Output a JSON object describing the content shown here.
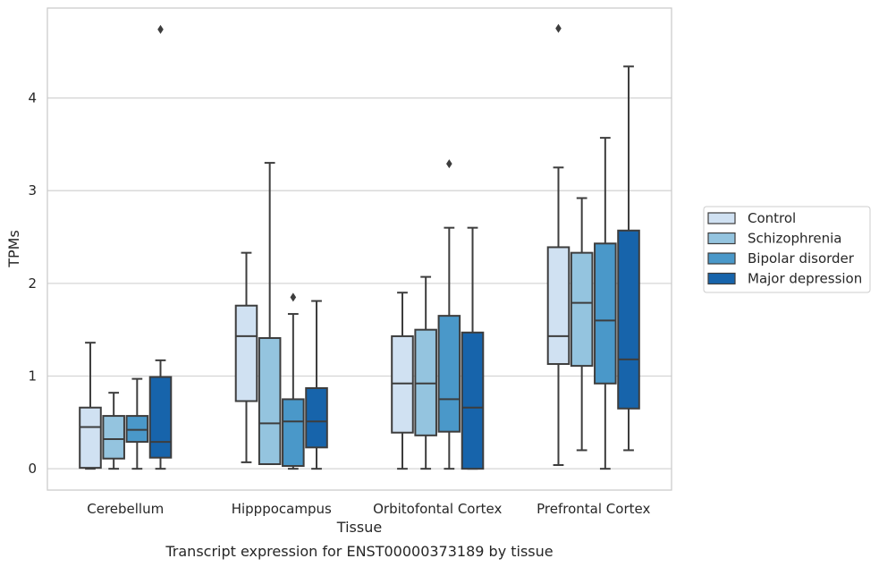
{
  "chart_data": {
    "type": "box",
    "caption": "Transcript expression for ENST00000373189 by tissue",
    "xlabel": "Tissue",
    "ylabel": "TPMs",
    "ylim": [
      -0.23,
      4.97
    ],
    "yticks": [
      0,
      1,
      2,
      3,
      4
    ],
    "grid": "horizontal",
    "legend_position": "right",
    "categories": [
      "Cerebellum",
      "Hipppocampus",
      "Orbitofontal Cortex",
      "Prefrontal Cortex"
    ],
    "series": [
      {
        "name": "Control",
        "color": "#d0e1f2",
        "boxes": [
          {
            "min": 0.0,
            "q1": 0.01,
            "median": 0.45,
            "q3": 0.66,
            "max": 1.36,
            "outliers": []
          },
          {
            "min": 0.07,
            "q1": 0.73,
            "median": 1.43,
            "q3": 1.76,
            "max": 2.33,
            "outliers": []
          },
          {
            "min": 0.0,
            "q1": 0.39,
            "median": 0.92,
            "q3": 1.43,
            "max": 1.9,
            "outliers": []
          },
          {
            "min": 0.04,
            "q1": 1.13,
            "median": 1.43,
            "q3": 2.39,
            "max": 3.25,
            "outliers": [
              4.75
            ]
          }
        ]
      },
      {
        "name": "Schizophrenia",
        "color": "#94c4df",
        "boxes": [
          {
            "min": 0.0,
            "q1": 0.11,
            "median": 0.32,
            "q3": 0.57,
            "max": 0.82,
            "outliers": []
          },
          {
            "min": 0.05,
            "q1": 0.05,
            "median": 0.49,
            "q3": 1.41,
            "max": 3.3,
            "outliers": []
          },
          {
            "min": 0.0,
            "q1": 0.36,
            "median": 0.92,
            "q3": 1.5,
            "max": 2.07,
            "outliers": []
          },
          {
            "min": 0.2,
            "q1": 1.11,
            "median": 1.79,
            "q3": 2.33,
            "max": 2.92,
            "outliers": []
          }
        ]
      },
      {
        "name": "Bipolar disorder",
        "color": "#4a98c9",
        "boxes": [
          {
            "min": 0.0,
            "q1": 0.29,
            "median": 0.42,
            "q3": 0.57,
            "max": 0.97,
            "outliers": []
          },
          {
            "min": 0.0,
            "q1": 0.03,
            "median": 0.51,
            "q3": 0.75,
            "max": 1.67,
            "outliers": [
              1.85
            ]
          },
          {
            "min": 0.0,
            "q1": 0.4,
            "median": 0.75,
            "q3": 1.65,
            "max": 2.6,
            "outliers": [
              3.29
            ]
          },
          {
            "min": 0.0,
            "q1": 0.92,
            "median": 1.6,
            "q3": 2.43,
            "max": 3.57,
            "outliers": []
          }
        ]
      },
      {
        "name": "Major depression",
        "color": "#1764ab",
        "boxes": [
          {
            "min": 0.0,
            "q1": 0.12,
            "median": 0.29,
            "q3": 0.99,
            "max": 1.17,
            "outliers": [
              4.74
            ]
          },
          {
            "min": 0.0,
            "q1": 0.23,
            "median": 0.51,
            "q3": 0.87,
            "max": 1.81,
            "outliers": []
          },
          {
            "min": 0.0,
            "q1": 0.0,
            "median": 0.66,
            "q3": 1.47,
            "max": 2.6,
            "outliers": []
          },
          {
            "min": 0.2,
            "q1": 0.65,
            "median": 1.18,
            "q3": 2.57,
            "max": 4.34,
            "outliers": []
          }
        ]
      }
    ]
  }
}
